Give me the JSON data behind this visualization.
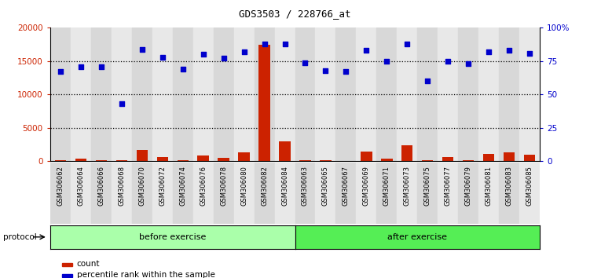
{
  "title": "GDS3503 / 228766_at",
  "categories": [
    "GSM306062",
    "GSM306064",
    "GSM306066",
    "GSM306068",
    "GSM306070",
    "GSM306072",
    "GSM306074",
    "GSM306076",
    "GSM306078",
    "GSM306080",
    "GSM306082",
    "GSM306084",
    "GSM306063",
    "GSM306065",
    "GSM306067",
    "GSM306069",
    "GSM306071",
    "GSM306073",
    "GSM306075",
    "GSM306077",
    "GSM306079",
    "GSM306081",
    "GSM306083",
    "GSM306085"
  ],
  "count_values": [
    120,
    350,
    150,
    100,
    1700,
    600,
    200,
    900,
    500,
    1300,
    17500,
    3000,
    100,
    200,
    80,
    1500,
    350,
    2400,
    200,
    600,
    150,
    1100,
    1300,
    1000
  ],
  "percentile_values": [
    67,
    71,
    71,
    43,
    84,
    78,
    69,
    80,
    77,
    82,
    88,
    88,
    74,
    68,
    67,
    83,
    75,
    88,
    60,
    75,
    73,
    82,
    83,
    81
  ],
  "bar_color": "#cc2200",
  "scatter_color": "#0000cc",
  "ylim_left": [
    0,
    20000
  ],
  "ylim_right": [
    0,
    100
  ],
  "yticks_left": [
    0,
    5000,
    10000,
    15000,
    20000
  ],
  "yticks_right": [
    0,
    25,
    50,
    75,
    100
  ],
  "ytick_labels_left": [
    "0",
    "5000",
    "10000",
    "15000",
    "20000"
  ],
  "ytick_labels_right": [
    "0",
    "25",
    "50",
    "75",
    "100%"
  ],
  "before_exercise_count": 12,
  "before_label": "before exercise",
  "after_label": "after exercise",
  "protocol_label": "protocol",
  "legend_count_label": "count",
  "legend_percentile_label": "percentile rank within the sample",
  "bg_color": "#ffffff",
  "grid_color": "#000000",
  "before_color": "#aaffaa",
  "after_color": "#55ee55",
  "col_bg_even": "#d8d8d8",
  "col_bg_odd": "#e8e8e8",
  "xlabel_color_left": "#cc2200",
  "xlabel_color_right": "#0000cc"
}
